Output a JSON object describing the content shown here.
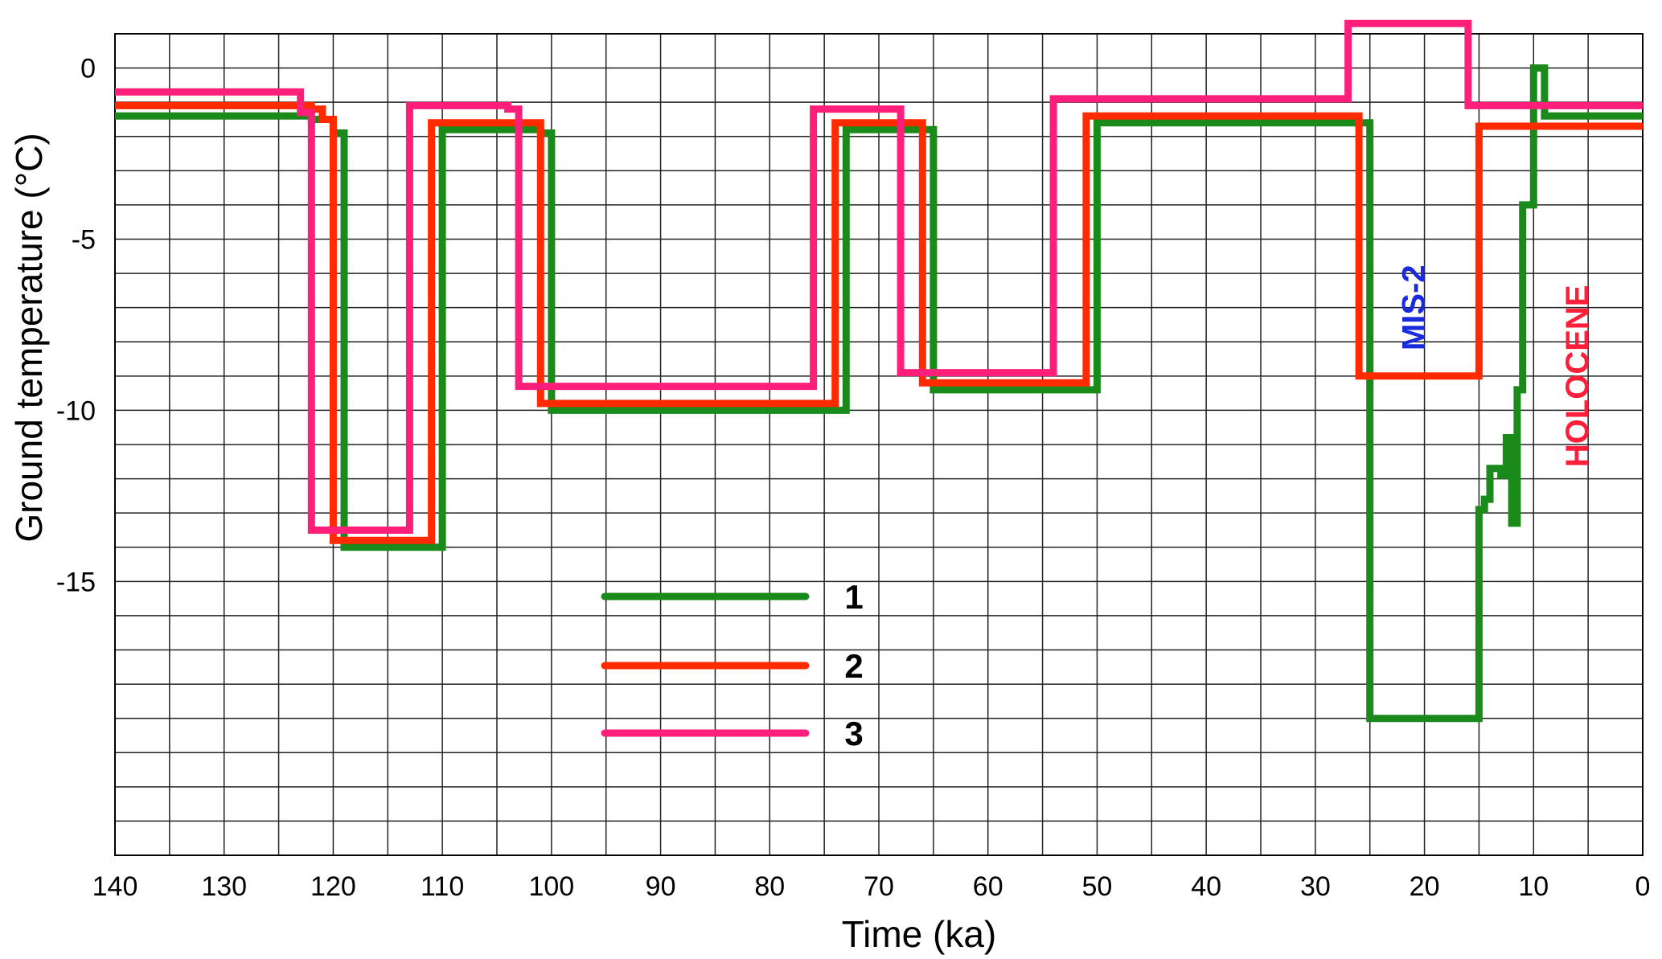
{
  "chart_data": {
    "type": "line",
    "xlabel": "Time (ka)",
    "ylabel": "Ground temperature (°C)",
    "xlim": [
      140,
      0
    ],
    "ylim": [
      -23,
      1
    ],
    "x_reversed": true,
    "grid": true,
    "x_ticks": [
      140,
      130,
      120,
      110,
      100,
      90,
      80,
      70,
      60,
      50,
      40,
      30,
      20,
      10,
      0
    ],
    "x_tick_labels": [
      "140",
      "130",
      "120",
      "110",
      "100",
      "90",
      "80",
      "70",
      "60",
      "50",
      "40",
      "30",
      "20",
      "10",
      "0"
    ],
    "y_ticks": [
      0,
      -5,
      -10,
      -15
    ],
    "y_tick_labels": [
      "0",
      "-5",
      "-10",
      "-15"
    ],
    "legend_position": "center",
    "series": [
      {
        "name": "1",
        "color": "#1a8a1a",
        "x": [
          140,
          122,
          122,
          120,
          120,
          119,
          119,
          110,
          110,
          101,
          101,
          100,
          100,
          73,
          73,
          66,
          66,
          65,
          65,
          50,
          50,
          25,
          25,
          15,
          15,
          14.5,
          14.5,
          14,
          14,
          13,
          13,
          12.5,
          12.5,
          12,
          12,
          11.5,
          11.5,
          11,
          11,
          10,
          10,
          9,
          9,
          8.5,
          8.5,
          7,
          7,
          6.5,
          6.5,
          0
        ],
        "y": [
          -1.4,
          -1.4,
          -1.5,
          -1.5,
          -1.9,
          -1.9,
          -14,
          -14,
          -1.8,
          -1.8,
          -1.9,
          -1.9,
          -10,
          -10,
          -1.8,
          -1.8,
          -1.8,
          -1.8,
          -9.4,
          -9.4,
          -1.6,
          -1.6,
          -19,
          -19,
          -12.9,
          -12.9,
          -12.6,
          -12.6,
          -11.7,
          -11.7,
          -11.9,
          -11.9,
          -10.8,
          -10.8,
          -13.3,
          -13.3,
          -9.4,
          -9.4,
          -4,
          -4,
          0,
          0,
          -1.4,
          -1.4,
          -1.4,
          -1.4,
          -1.4,
          -1.4,
          -1.4,
          -1.4
        ]
      },
      {
        "name": "2",
        "color": "#ff2a00",
        "x": [
          140,
          122,
          122,
          121,
          121,
          120,
          120,
          111,
          111,
          102,
          102,
          101,
          101,
          74,
          74,
          67,
          67,
          66,
          66,
          51,
          51,
          26,
          26,
          15,
          15,
          0
        ],
        "y": [
          -1.1,
          -1.1,
          -1.2,
          -1.2,
          -1.5,
          -1.5,
          -13.8,
          -13.8,
          -1.6,
          -1.6,
          -1.6,
          -1.6,
          -9.8,
          -9.8,
          -1.6,
          -1.6,
          -1.6,
          -1.6,
          -9.2,
          -9.2,
          -1.4,
          -1.4,
          -9,
          -9,
          -1.7,
          -1.7
        ]
      },
      {
        "name": "3",
        "color": "#ff1f7a",
        "x": [
          140,
          123,
          123,
          122,
          122,
          113,
          113,
          104,
          104,
          103,
          103,
          76,
          76,
          68,
          68,
          54,
          54,
          27,
          27,
          16,
          16,
          0
        ],
        "y": [
          -0.7,
          -0.7,
          -1.3,
          -1.3,
          -13.5,
          -13.5,
          -1.1,
          -1.1,
          -1.2,
          -1.2,
          -9.3,
          -9.3,
          -1.2,
          -1.2,
          -8.9,
          -8.9,
          -0.9,
          -0.9,
          1.3,
          1.3,
          -1.1,
          -1.1
        ]
      }
    ],
    "annotations": [
      {
        "text": "MIS-2",
        "x": 20,
        "y": -7,
        "color": "#1a2bdc",
        "rotation": -90
      },
      {
        "text": "HOLOCENE",
        "x": 5,
        "y": -9,
        "color": "#ff1f3a",
        "rotation": -90
      }
    ]
  }
}
